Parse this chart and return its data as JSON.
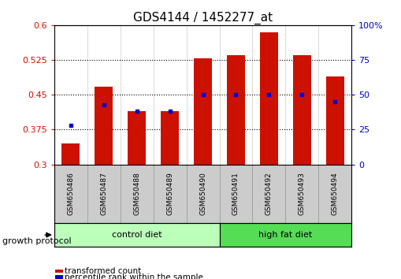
{
  "title": "GDS4144 / 1452277_at",
  "samples": [
    "GSM650486",
    "GSM650487",
    "GSM650488",
    "GSM650489",
    "GSM650490",
    "GSM650491",
    "GSM650492",
    "GSM650493",
    "GSM650494"
  ],
  "transformed_count": [
    0.345,
    0.468,
    0.415,
    0.415,
    0.528,
    0.535,
    0.585,
    0.535,
    0.49
  ],
  "percentile_rank": [
    28,
    43,
    38,
    38,
    50,
    50,
    50,
    50,
    45
  ],
  "bar_color": "#cc1100",
  "dot_color": "#0000cc",
  "ylim_left": [
    0.3,
    0.6
  ],
  "ylim_right": [
    0,
    100
  ],
  "yticks_left": [
    0.3,
    0.375,
    0.45,
    0.525,
    0.6
  ],
  "yticks_right": [
    0,
    25,
    50,
    75,
    100
  ],
  "ytick_labels_left": [
    "0.3",
    "0.375",
    "0.45",
    "0.525",
    "0.6"
  ],
  "ytick_labels_right": [
    "0",
    "25",
    "50",
    "75",
    "100%"
  ],
  "hlines": [
    0.375,
    0.45,
    0.525
  ],
  "groups": [
    {
      "label": "control diet",
      "start": 0,
      "end": 5,
      "color": "#bbffbb"
    },
    {
      "label": "high fat diet",
      "start": 5,
      "end": 9,
      "color": "#55dd55"
    }
  ],
  "group_label": "growth protocol",
  "legend_items": [
    {
      "label": "transformed count",
      "color": "#cc1100"
    },
    {
      "label": "percentile rank within the sample",
      "color": "#0000cc"
    }
  ],
  "bar_width": 0.55,
  "sample_box_color": "#cccccc",
  "sample_sep_color": "#999999",
  "spine_color": "#000000",
  "vline_color": "#cccccc"
}
